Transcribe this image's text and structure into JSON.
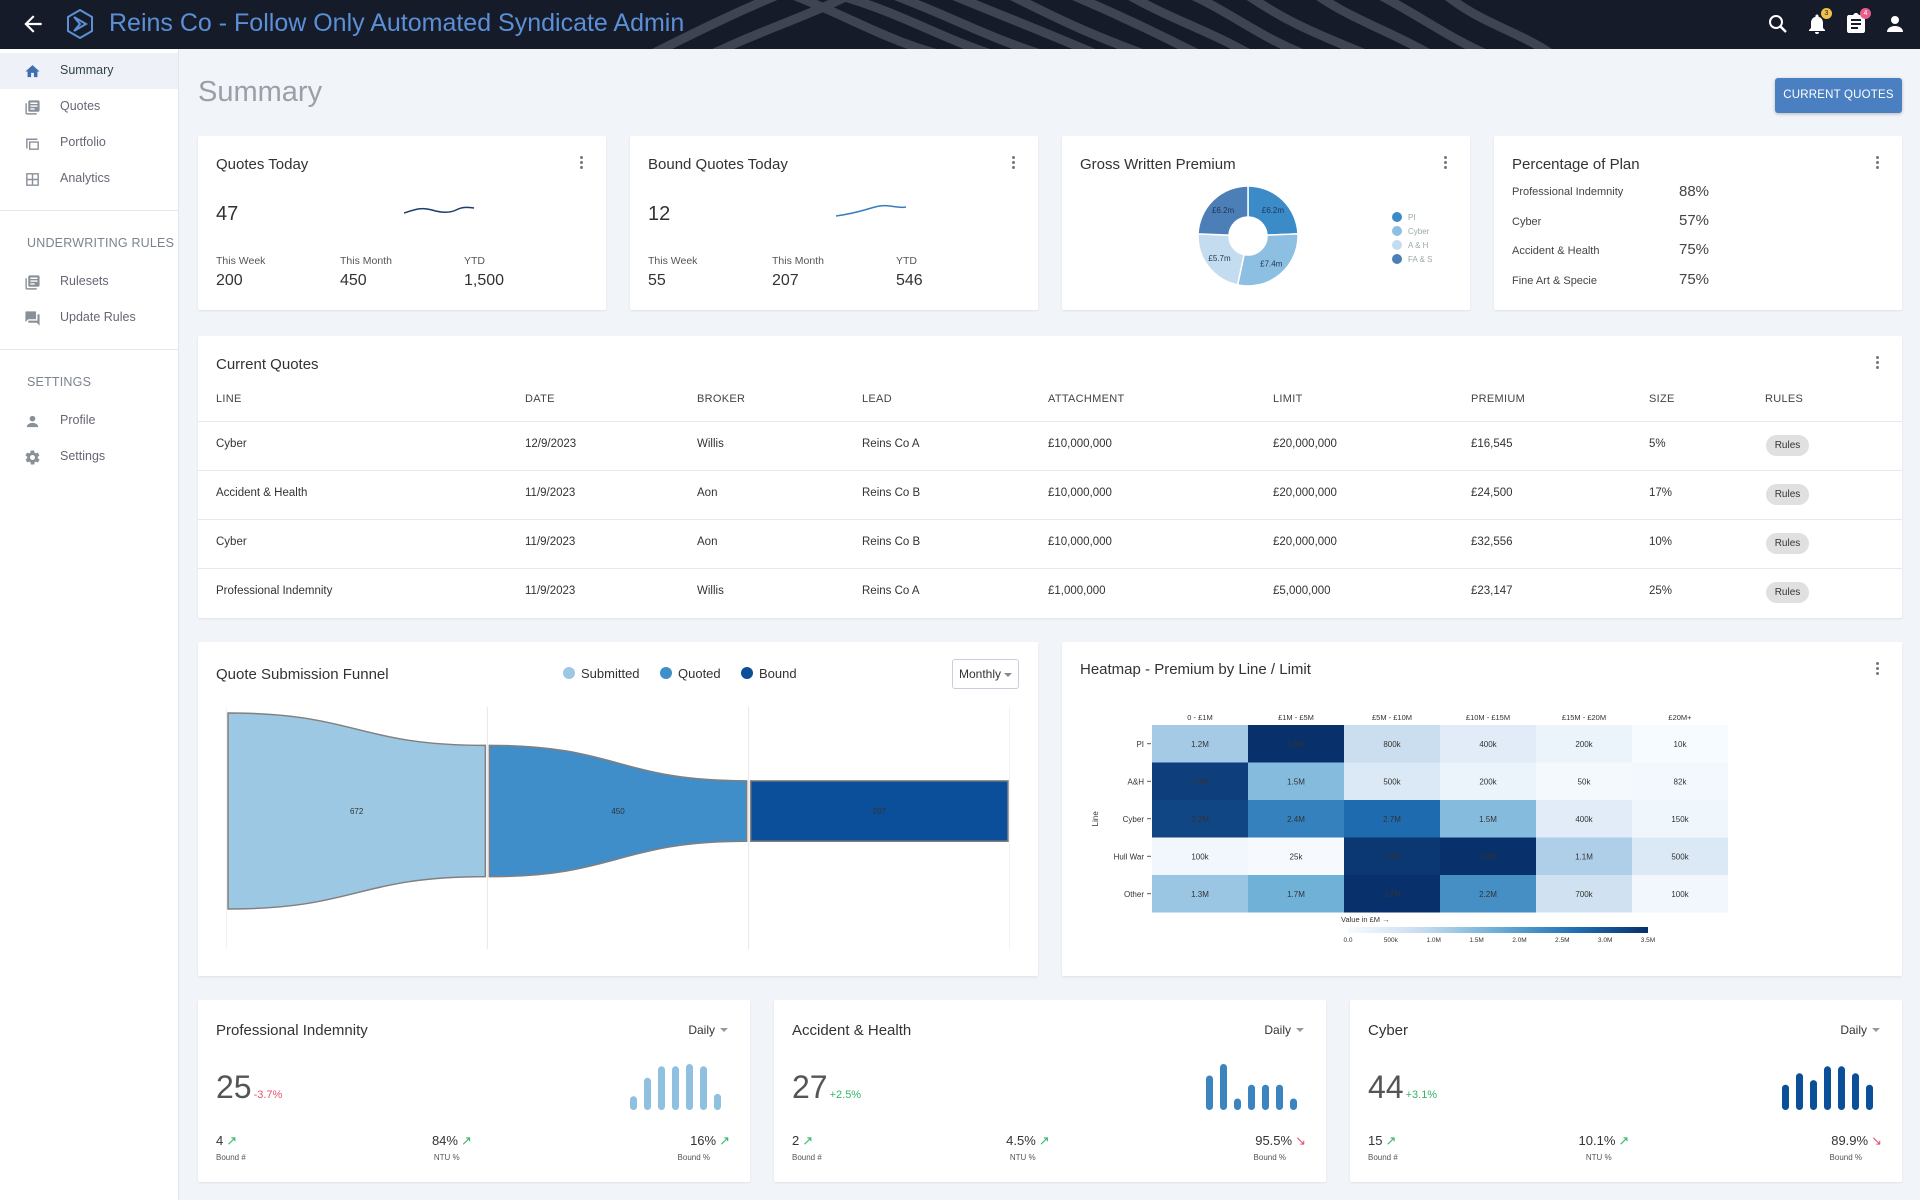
{
  "app": {
    "title": "Reins Co - Follow Only Automated Syndicate Admin"
  },
  "topbar": {
    "icons": [
      "back-arrow-icon",
      "logo-icon",
      "search-icon",
      "bell-icon",
      "clipboard-icon",
      "account-icon"
    ],
    "notification_badge": "3",
    "clipboard_badge": "4"
  },
  "sidebar": {
    "items": [
      {
        "label": "Summary",
        "icon": "home-icon",
        "active": true
      },
      {
        "label": "Quotes",
        "icon": "list-icon"
      },
      {
        "label": "Portfolio",
        "icon": "square-icon"
      },
      {
        "label": "Analytics",
        "icon": "grid-icon"
      }
    ],
    "section_underwriting": "UNDERWRITING RULES",
    "underwriting_items": [
      {
        "label": "Rulesets",
        "icon": "list-icon"
      },
      {
        "label": "Update Rules",
        "icon": "chat-icon"
      }
    ],
    "section_settings": "SETTINGS",
    "settings_items": [
      {
        "label": "Profile",
        "icon": "person-icon"
      },
      {
        "label": "Settings",
        "icon": "gear-icon"
      }
    ]
  },
  "page": {
    "title": "Summary",
    "current_quotes_button": "CURRENT QUOTES"
  },
  "quotes_today": {
    "title": "Quotes Today",
    "value": "47",
    "this_week_label": "This Week",
    "this_week": "200",
    "this_month_label": "This Month",
    "this_month": "450",
    "ytd_label": "YTD",
    "ytd": "1,500"
  },
  "bound_today": {
    "title": "Bound Quotes Today",
    "value": "12",
    "this_week_label": "This Week",
    "this_week": "55",
    "this_month_label": "This Month",
    "this_month": "207",
    "ytd_label": "YTD",
    "ytd": "546"
  },
  "gwp": {
    "title": "Gross Written Premium",
    "slices": [
      {
        "label": "£6.2m",
        "legend": "PI",
        "color": "#3b8bc8"
      },
      {
        "label": "£7.4m",
        "legend": "Cyber",
        "color": "#8dbfe3"
      },
      {
        "label": "£5.7m",
        "legend": "A & H",
        "color": "#c3dcf0"
      },
      {
        "label": "£6.2m",
        "legend": "FA & S",
        "color": "#4c7eb7"
      }
    ]
  },
  "plan": {
    "title": "Percentage of Plan",
    "rows": [
      {
        "label": "Professional Indemnity",
        "value": "88%"
      },
      {
        "label": "Cyber",
        "value": "57%"
      },
      {
        "label": "Accident & Health",
        "value": "75%"
      },
      {
        "label": "Fine Art & Specie",
        "value": "75%"
      }
    ]
  },
  "current_quotes": {
    "title": "Current Quotes",
    "columns": [
      "LINE",
      "DATE",
      "BROKER",
      "LEAD",
      "ATTACHMENT",
      "LIMIT",
      "PREMIUM",
      "SIZE",
      "RULES"
    ],
    "rows": [
      [
        "Cyber",
        "12/9/2023",
        "Willis",
        "Reins Co A",
        "£10,000,000",
        "£20,000,000",
        "£16,545",
        "5%",
        "Rules"
      ],
      [
        "Accident & Health",
        "11/9/2023",
        "Aon",
        "Reins Co B",
        "£10,000,000",
        "£20,000,000",
        "£24,500",
        "17%",
        "Rules"
      ],
      [
        "Cyber",
        "11/9/2023",
        "Aon",
        "Reins Co B",
        "£10,000,000",
        "£20,000,000",
        "£32,556",
        "10%",
        "Rules"
      ],
      [
        "Professional Indemnity",
        "11/9/2023",
        "Willis",
        "Reins Co A",
        "£1,000,000",
        "£5,000,000",
        "£23,147",
        "25%",
        "Rules"
      ]
    ]
  },
  "funnel": {
    "title": "Quote Submission Funnel",
    "legend": [
      {
        "name": "Submitted",
        "color": "#9cc8e3"
      },
      {
        "name": "Quoted",
        "color": "#3f8ec9"
      },
      {
        "name": "Bound",
        "color": "#0b4f9a"
      }
    ],
    "period": "Monthly"
  },
  "heatmap": {
    "title": "Heatmap - Premium by Line / Limit",
    "scale_label": "Value in £M",
    "scale_ticks": [
      "0.0",
      "500k",
      "1.0M",
      "1.5M",
      "2.0M",
      "2.5M",
      "3.0M",
      "3.5M"
    ]
  },
  "chart_data": [
    {
      "type": "pie",
      "title": "Gross Written Premium",
      "categories": [
        "PI",
        "Cyber",
        "A & H",
        "FA & S"
      ],
      "values": [
        6.2,
        7.4,
        5.7,
        6.2
      ],
      "labels": [
        "£6.2m",
        "£7.4m",
        "£5.7m",
        "£6.2m"
      ]
    },
    {
      "type": "area",
      "title": "Quote Submission Funnel",
      "categories": [
        "Submitted",
        "Quoted",
        "Bound"
      ],
      "values": [
        672,
        450,
        207
      ],
      "labels": [
        "672",
        "450",
        "207"
      ]
    },
    {
      "type": "heatmap",
      "title": "Heatmap - Premium by Line / Limit",
      "ylabel": "Line",
      "x": [
        "0 - £1M",
        "£1M - £5M",
        "£5M - £10M",
        "£10M - £15M",
        "£15M - £20M",
        "£20M+"
      ],
      "y": [
        "PI",
        "A&H",
        "Cyber",
        "Hull War",
        "Other"
      ],
      "labels": [
        [
          "1.2M",
          "3.6M",
          "800k",
          "400k",
          "200k",
          "10k"
        ],
        [
          "3.3M",
          "1.5M",
          "500k",
          "200k",
          "50k",
          "82k"
        ],
        [
          "3.2M",
          "2.4M",
          "2.7M",
          "1.5M",
          "400k",
          "150k"
        ],
        [
          "100k",
          "25k",
          "3.4M",
          "3.6M",
          "1.1M",
          "500k"
        ],
        [
          "1.3M",
          "1.7M",
          "3.7M",
          "2.2M",
          "700k",
          "100k"
        ]
      ],
      "values": [
        [
          1.2,
          3.6,
          0.8,
          0.4,
          0.2,
          0.01
        ],
        [
          3.3,
          1.5,
          0.5,
          0.2,
          0.05,
          0.082
        ],
        [
          3.2,
          2.4,
          2.7,
          1.5,
          0.4,
          0.15
        ],
        [
          0.1,
          0.025,
          3.4,
          3.6,
          1.1,
          0.5
        ],
        [
          1.3,
          1.7,
          3.7,
          2.2,
          0.7,
          0.1
        ]
      ],
      "range": [
        0,
        3.5
      ]
    },
    {
      "type": "bar",
      "title": "Professional Indemnity daily",
      "values": [
        0.3,
        0.7,
        0.95,
        0.95,
        1.0,
        0.95,
        0.35
      ]
    },
    {
      "type": "bar",
      "title": "Accident & Health daily",
      "values": [
        0.75,
        1.0,
        0.25,
        0.55,
        0.55,
        0.55,
        0.25
      ]
    },
    {
      "type": "bar",
      "title": "Cyber daily",
      "values": [
        0.55,
        0.8,
        0.65,
        0.95,
        0.95,
        0.8,
        0.55
      ]
    }
  ],
  "line_cards": [
    {
      "title": "Professional Indemnity",
      "period": "Daily",
      "value": "25",
      "delta": "-3.7%",
      "delta_color": "#e0556e",
      "bar_color": "#8fc0e0",
      "stats": [
        {
          "value": "4",
          "label": "Bound #",
          "dir": "up"
        },
        {
          "value": "84%",
          "label": "NTU %",
          "dir": "up"
        },
        {
          "value": "16%",
          "label": "Bound %",
          "dir": "up"
        }
      ]
    },
    {
      "title": "Accident & Health",
      "period": "Daily",
      "value": "27",
      "delta": "+2.5%",
      "delta_color": "#35b36b",
      "bar_color": "#3b84bf",
      "stats": [
        {
          "value": "2",
          "label": "Bound #",
          "dir": "up"
        },
        {
          "value": "4.5%",
          "label": "NTU %",
          "dir": "up"
        },
        {
          "value": "95.5%",
          "label": "Bound %",
          "dir": "down"
        }
      ]
    },
    {
      "title": "Cyber",
      "period": "Daily",
      "value": "44",
      "delta": "+3.1%",
      "delta_color": "#35b36b",
      "bar_color": "#0c4f99",
      "stats": [
        {
          "value": "15",
          "label": "Bound #",
          "dir": "up"
        },
        {
          "value": "10.1%",
          "label": "NTU %",
          "dir": "up"
        },
        {
          "value": "89.9%",
          "label": "Bound %",
          "dir": "down"
        }
      ]
    }
  ],
  "colors": {
    "accent": "#4a7fc1",
    "up": "#35b36b",
    "down": "#e0556e"
  }
}
